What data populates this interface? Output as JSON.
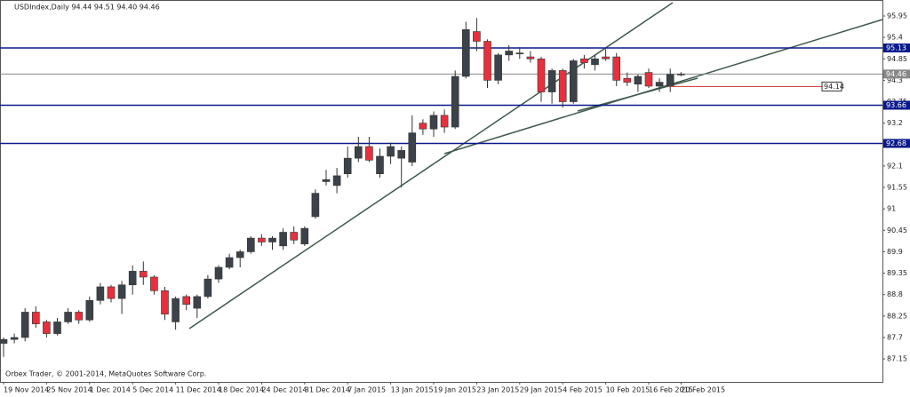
{
  "chart_data": {
    "type": "candlestick",
    "title": "USDIndex,Daily  94.44 94.51 94.40 94.46",
    "footer": "Orbex Trader, © 2001-2014, MetaQuotes Software Corp.",
    "categories": [
      "19 Nov 2014",
      null,
      null,
      null,
      "25 Nov 2014",
      null,
      null,
      null,
      "1 Dec 2014",
      null,
      null,
      null,
      "5 Dec 2014",
      null,
      null,
      null,
      "11 Dec 2014",
      null,
      null,
      null,
      "18 Dec 2014",
      null,
      null,
      null,
      "24 Dec 2014",
      null,
      null,
      null,
      "31 Dec 2014",
      null,
      null,
      null,
      "7 Jan 2015",
      null,
      null,
      null,
      "13 Jan 2015",
      null,
      null,
      null,
      "19 Jan 2015",
      null,
      null,
      null,
      "23 Jan 2015",
      null,
      null,
      null,
      "29 Jan 2015",
      null,
      null,
      null,
      "4 Feb 2015",
      null,
      null,
      null,
      "10 Feb 2015",
      null,
      null,
      null,
      "16 Feb 2015",
      null,
      null,
      "20 Feb 2015"
    ],
    "open": [
      87.55,
      87.65,
      87.7,
      88.35,
      88.1,
      87.8,
      88.1,
      88.35,
      88.15,
      88.65,
      89.0,
      88.7,
      89.05,
      89.4,
      89.25,
      88.9,
      88.1,
      88.75,
      88.45,
      88.75,
      89.2,
      89.5,
      89.75,
      89.9,
      90.25,
      90.15,
      90.05,
      90.4,
      90.1,
      90.8,
      91.7,
      91.6,
      91.9,
      92.3,
      92.6,
      91.9,
      92.35,
      92.3,
      92.2,
      93.2,
      93.05,
      93.4,
      93.1,
      94.4,
      95.55,
      95.3,
      94.3,
      94.95,
      95.0,
      94.9,
      94.85,
      94.0,
      94.55,
      93.75,
      94.85,
      94.7,
      94.9,
      94.9,
      94.35,
      94.2,
      94.5,
      94.15,
      94.15,
      94.44
    ],
    "high": [
      87.7,
      87.8,
      88.45,
      88.5,
      88.15,
      88.2,
      88.45,
      88.4,
      88.75,
      89.1,
      89.05,
      89.15,
      89.55,
      89.65,
      89.3,
      89.0,
      88.75,
      88.8,
      88.8,
      89.3,
      89.55,
      89.85,
      89.95,
      90.3,
      90.35,
      90.3,
      90.5,
      90.55,
      90.55,
      91.5,
      92.0,
      92.05,
      92.6,
      92.85,
      92.85,
      92.55,
      92.7,
      92.6,
      93.4,
      93.3,
      93.5,
      93.55,
      94.55,
      95.8,
      95.9,
      95.35,
      95.0,
      95.2,
      95.15,
      95.05,
      94.9,
      94.6,
      94.6,
      94.85,
      94.95,
      94.95,
      95.1,
      95.0,
      94.5,
      94.45,
      94.6,
      94.35,
      94.6,
      94.51
    ],
    "low": [
      87.2,
      87.55,
      87.6,
      87.95,
      87.7,
      87.75,
      88.05,
      88.05,
      88.1,
      88.55,
      88.6,
      88.3,
      88.8,
      89.05,
      88.8,
      88.15,
      87.9,
      88.4,
      88.2,
      88.7,
      89.1,
      89.45,
      89.5,
      89.85,
      90.05,
      89.95,
      89.95,
      90.1,
      90.05,
      90.75,
      91.6,
      91.4,
      91.8,
      92.2,
      92.2,
      91.8,
      92.15,
      91.55,
      92.1,
      92.9,
      92.85,
      92.95,
      93.05,
      94.35,
      95.05,
      94.1,
      94.2,
      94.8,
      94.85,
      94.75,
      93.75,
      93.7,
      93.6,
      93.7,
      94.6,
      94.55,
      94.8,
      94.15,
      94.15,
      94.0,
      94.1,
      94.0,
      94.0,
      94.4
    ],
    "close": [
      87.65,
      87.7,
      88.35,
      88.05,
      87.8,
      88.1,
      88.35,
      88.15,
      88.65,
      89.0,
      88.7,
      89.05,
      89.4,
      89.25,
      88.9,
      88.3,
      88.7,
      88.55,
      88.75,
      89.2,
      89.5,
      89.75,
      89.9,
      90.25,
      90.15,
      90.25,
      90.4,
      90.2,
      90.5,
      91.4,
      91.75,
      91.85,
      92.3,
      92.6,
      92.25,
      92.35,
      92.6,
      92.5,
      92.95,
      93.05,
      93.4,
      93.1,
      94.4,
      95.6,
      95.3,
      94.3,
      94.95,
      95.05,
      95.0,
      94.85,
      94.0,
      94.55,
      93.75,
      94.8,
      94.75,
      94.85,
      94.85,
      94.3,
      94.25,
      94.4,
      94.15,
      94.25,
      94.45,
      94.46
    ],
    "up_color": "#3b4249",
    "down_color": "#e8303c",
    "ylim": [
      86.56,
      96.36
    ],
    "yticks": [
      95.95,
      95.4,
      94.85,
      94.3,
      93.75,
      93.2,
      92.65,
      92.1,
      91.55,
      91.0,
      90.45,
      89.9,
      89.35,
      88.8,
      88.25,
      87.7,
      87.15
    ],
    "levels": [
      95.13,
      94.46,
      93.66,
      92.68
    ],
    "level_colors": [
      "#0a1a8c",
      "#888888",
      "#0a1a8c",
      "#0a1a8c"
    ],
    "price_label": 94.14,
    "price_label_color": "#d03030"
  }
}
